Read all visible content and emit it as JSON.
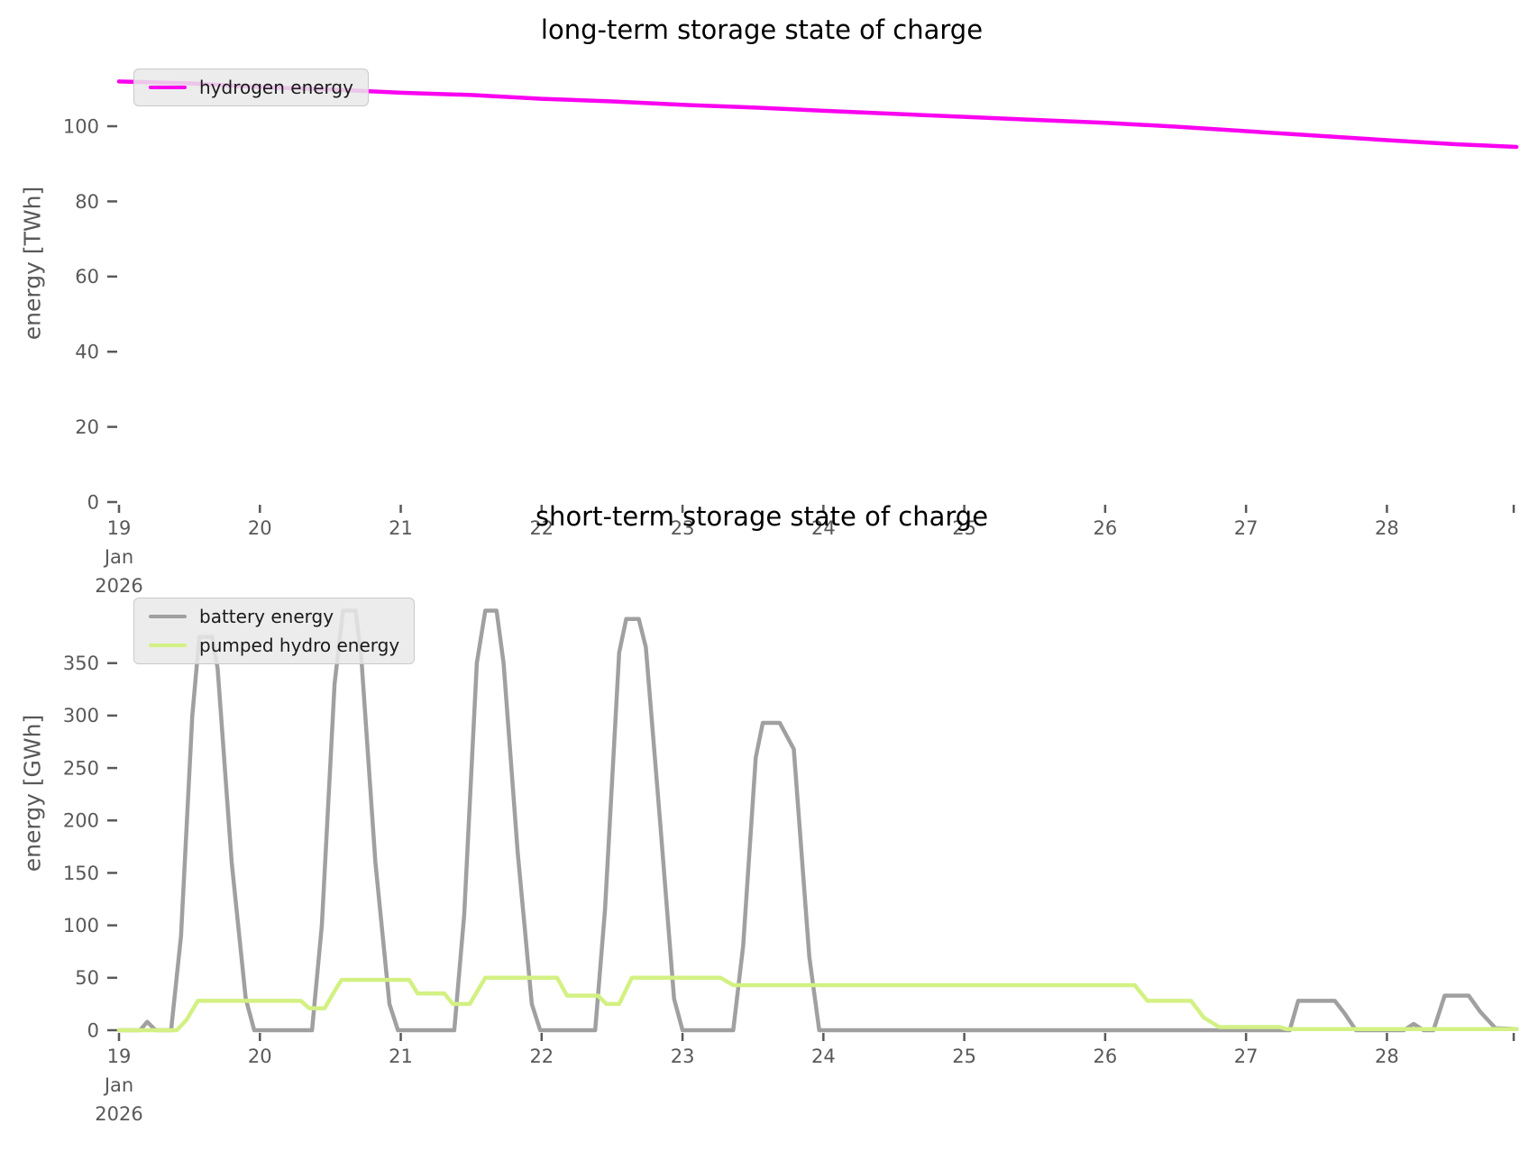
{
  "page": {
    "background": "#ffffff"
  },
  "chart_data": [
    {
      "type": "line",
      "title": "long-term storage state of charge",
      "ylabel": "energy [TWh]",
      "xlabel": "",
      "unit": "TWh",
      "x_unit": "days since 2026-01-19",
      "grid": false,
      "legend_position": "upper left",
      "xlim": [
        0,
        9.97
      ],
      "ylim": [
        0,
        113.2
      ],
      "yticks": [
        0,
        20,
        40,
        60,
        80,
        100
      ],
      "xticks": [
        {
          "f": 0,
          "lines": [
            "19",
            "Jan",
            "2026"
          ]
        },
        {
          "f": 1,
          "lines": [
            "20"
          ]
        },
        {
          "f": 2,
          "lines": [
            "21"
          ]
        },
        {
          "f": 3,
          "lines": [
            "22"
          ]
        },
        {
          "f": 4,
          "lines": [
            "23"
          ]
        },
        {
          "f": 5,
          "lines": [
            "24"
          ]
        },
        {
          "f": 6,
          "lines": [
            "25"
          ]
        },
        {
          "f": 7,
          "lines": [
            "26"
          ]
        },
        {
          "f": 8,
          "lines": [
            "27"
          ]
        },
        {
          "f": 9,
          "lines": [
            "28"
          ]
        },
        {
          "f": 9.9,
          "lines": []
        }
      ],
      "series": [
        {
          "name": "hydrogen energy",
          "color": "#fa00f0",
          "points": [
            [
              0,
              111.9
            ],
            [
              0.5,
              111.4
            ],
            [
              1.0,
              110.4
            ],
            [
              1.5,
              109.8
            ],
            [
              2.0,
              108.9
            ],
            [
              2.5,
              108.3
            ],
            [
              3.0,
              107.3
            ],
            [
              3.5,
              106.6
            ],
            [
              4.0,
              105.7
            ],
            [
              4.5,
              105.0
            ],
            [
              5.0,
              104.1
            ],
            [
              5.5,
              103.3
            ],
            [
              6.0,
              102.5
            ],
            [
              6.5,
              101.7
            ],
            [
              7.0,
              100.9
            ],
            [
              7.5,
              99.9
            ],
            [
              8.0,
              98.7
            ],
            [
              8.5,
              97.5
            ],
            [
              9.0,
              96.3
            ],
            [
              9.5,
              95.2
            ],
            [
              9.92,
              94.5
            ]
          ]
        }
      ]
    },
    {
      "type": "line",
      "title": "short-term storage state of charge",
      "ylabel": "energy [GWh]",
      "xlabel": "",
      "unit": "GWh",
      "x_unit": "days since 2026-01-19",
      "grid": false,
      "legend_position": "upper left",
      "xlim": [
        0,
        9.97
      ],
      "ylim": [
        0,
        452
      ],
      "yticks": [
        0,
        50,
        100,
        150,
        200,
        250,
        300,
        350
      ],
      "xticks": [
        {
          "f": 0,
          "lines": [
            "19",
            "Jan",
            "2026"
          ]
        },
        {
          "f": 1,
          "lines": [
            "20"
          ]
        },
        {
          "f": 2,
          "lines": [
            "21"
          ]
        },
        {
          "f": 3,
          "lines": [
            "22"
          ]
        },
        {
          "f": 4,
          "lines": [
            "23"
          ]
        },
        {
          "f": 5,
          "lines": [
            "24"
          ]
        },
        {
          "f": 6,
          "lines": [
            "25"
          ]
        },
        {
          "f": 7,
          "lines": [
            "26"
          ]
        },
        {
          "f": 8,
          "lines": [
            "27"
          ]
        },
        {
          "f": 9,
          "lines": [
            "28"
          ]
        },
        {
          "f": 9.9,
          "lines": []
        }
      ],
      "series": [
        {
          "name": "battery energy",
          "color": "#a0a0a0",
          "points": [
            [
              0,
              0
            ],
            [
              0.15,
              0
            ],
            [
              0.2,
              8
            ],
            [
              0.26,
              0
            ],
            [
              0.37,
              0
            ],
            [
              0.44,
              90
            ],
            [
              0.52,
              300
            ],
            [
              0.57,
              375
            ],
            [
              0.66,
              375
            ],
            [
              0.7,
              345
            ],
            [
              0.8,
              160
            ],
            [
              0.9,
              30
            ],
            [
              0.96,
              0
            ],
            [
              1.37,
              0
            ],
            [
              1.44,
              100
            ],
            [
              1.53,
              330
            ],
            [
              1.59,
              400
            ],
            [
              1.68,
              400
            ],
            [
              1.72,
              355
            ],
            [
              1.82,
              160
            ],
            [
              1.92,
              25
            ],
            [
              1.98,
              0
            ],
            [
              2.38,
              0
            ],
            [
              2.45,
              110
            ],
            [
              2.54,
              350
            ],
            [
              2.6,
              400
            ],
            [
              2.68,
              400
            ],
            [
              2.73,
              350
            ],
            [
              2.83,
              170
            ],
            [
              2.93,
              25
            ],
            [
              2.99,
              0
            ],
            [
              3.38,
              0
            ],
            [
              3.45,
              115
            ],
            [
              3.55,
              360
            ],
            [
              3.6,
              392
            ],
            [
              3.69,
              392
            ],
            [
              3.74,
              365
            ],
            [
              3.84,
              200
            ],
            [
              3.94,
              30
            ],
            [
              4.0,
              0
            ],
            [
              4.36,
              0
            ],
            [
              4.43,
              80
            ],
            [
              4.52,
              260
            ],
            [
              4.57,
              293
            ],
            [
              4.69,
              293
            ],
            [
              4.79,
              268
            ],
            [
              4.9,
              70
            ],
            [
              4.97,
              0
            ],
            [
              8.31,
              0
            ],
            [
              8.37,
              28
            ],
            [
              8.63,
              28
            ],
            [
              8.7,
              16
            ],
            [
              8.78,
              0
            ],
            [
              9.12,
              0
            ],
            [
              9.19,
              6
            ],
            [
              9.26,
              0
            ],
            [
              9.33,
              0
            ],
            [
              9.41,
              33
            ],
            [
              9.58,
              33
            ],
            [
              9.66,
              18
            ],
            [
              9.77,
              2
            ],
            [
              9.92,
              1
            ]
          ]
        },
        {
          "name": "pumped hydro energy",
          "color": "#d3f183",
          "points": [
            [
              0,
              0
            ],
            [
              0.41,
              0
            ],
            [
              0.48,
              10
            ],
            [
              0.56,
              28
            ],
            [
              1.29,
              28
            ],
            [
              1.35,
              21
            ],
            [
              1.46,
              21
            ],
            [
              1.52,
              35
            ],
            [
              1.58,
              48
            ],
            [
              2.06,
              48
            ],
            [
              2.12,
              35
            ],
            [
              2.31,
              35
            ],
            [
              2.37,
              25
            ],
            [
              2.49,
              25
            ],
            [
              2.6,
              50
            ],
            [
              3.11,
              50
            ],
            [
              3.18,
              33
            ],
            [
              3.4,
              33
            ],
            [
              3.46,
              25
            ],
            [
              3.55,
              25
            ],
            [
              3.64,
              50
            ],
            [
              4.27,
              50
            ],
            [
              4.36,
              43
            ],
            [
              7.21,
              43
            ],
            [
              7.3,
              28
            ],
            [
              7.61,
              28
            ],
            [
              7.7,
              12
            ],
            [
              7.81,
              3
            ],
            [
              8.24,
              3
            ],
            [
              8.29,
              1
            ],
            [
              9.92,
              1
            ]
          ]
        }
      ]
    }
  ]
}
